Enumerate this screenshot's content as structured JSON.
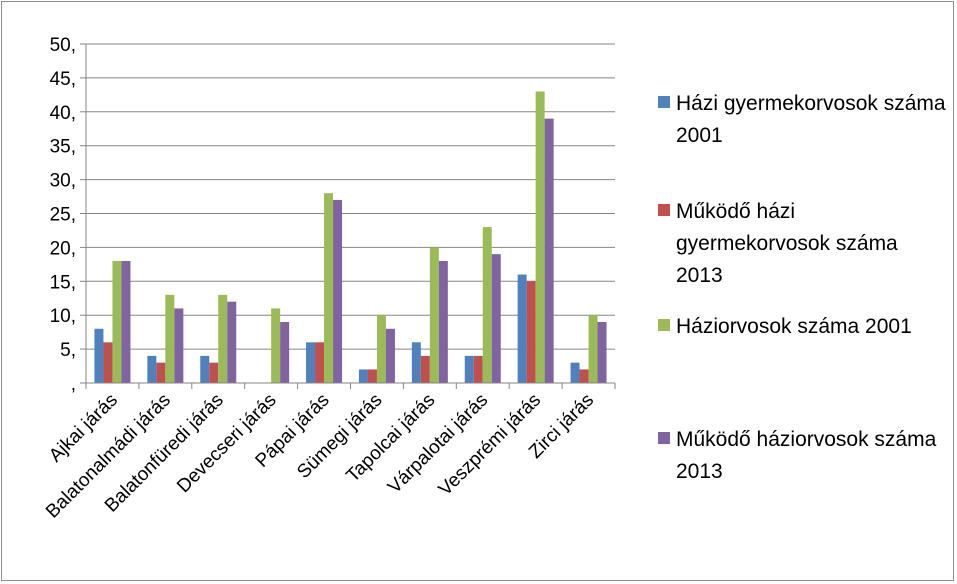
{
  "chart_data": {
    "type": "bar",
    "categories": [
      "Ajkai járás",
      "Balatonalmádi járás",
      "Balatonfüredi járás",
      "Devecseri járás",
      "Pápai járás",
      "Sümegi járás",
      "Tapolcai járás",
      "Várpalotai járás",
      "Veszprémi járás",
      "Zirci járás"
    ],
    "series": [
      {
        "name": "Házi gyermekorvosok száma 2001",
        "color": "#4F81BD",
        "values": [
          8,
          4,
          4,
          0,
          6,
          2,
          6,
          4,
          16,
          3
        ]
      },
      {
        "name": "Működő házi gyermekorvosok száma 2013",
        "color": "#C0504D",
        "values": [
          6,
          3,
          3,
          0,
          6,
          2,
          4,
          4,
          15,
          2
        ]
      },
      {
        "name": "Háziorvosok száma 2001",
        "color": "#9BBB59",
        "values": [
          18,
          13,
          13,
          11,
          28,
          10,
          20,
          23,
          43,
          10
        ]
      },
      {
        "name": "Működő háziorvosok száma 2013",
        "color": "#8064A2",
        "values": [
          18,
          11,
          12,
          9,
          27,
          8,
          18,
          19,
          39,
          9
        ]
      }
    ],
    "ylim": [
      0,
      50
    ],
    "y_ticks": [
      ",",
      "5,",
      "10,",
      "15,",
      "20,",
      "25,",
      "30,",
      "35,",
      "40,",
      "45,",
      "50,"
    ],
    "grid": true,
    "legend_position": "right"
  }
}
